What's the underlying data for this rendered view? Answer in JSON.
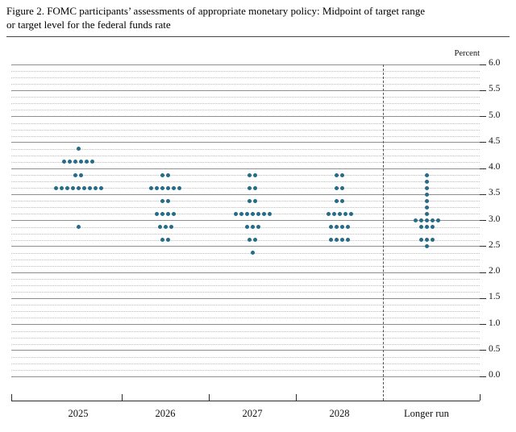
{
  "figure": {
    "title_line1": "Figure 2. FOMC participants’ assessments of appropriate monetary policy: Midpoint of target range",
    "title_line2": "or target level for the federal funds rate"
  },
  "chart_data": {
    "type": "scatter",
    "title": "FOMC participants’ assessments of appropriate monetary policy: Midpoint of target range or target level for the federal funds rate",
    "ylabel": "Percent",
    "xlabel": "",
    "ylim": [
      0.0,
      6.0
    ],
    "ytick_step": 0.5,
    "grid_minor_step": 0.125,
    "grid": "major solid, minor dotted",
    "legend_position": "none",
    "dot_color": "#256c8b",
    "ytick_labels": [
      "6.0",
      "5.5",
      "5.0",
      "4.5",
      "4.0",
      "3.5",
      "3.0",
      "2.5",
      "2.0",
      "1.5",
      "1.0",
      "0.5",
      "0.0"
    ],
    "categories": [
      "2025",
      "2026",
      "2027",
      "2028",
      "Longer run"
    ],
    "series": [
      {
        "category": "2025",
        "dots": [
          {
            "rate": 4.375,
            "count": 1
          },
          {
            "rate": 4.125,
            "count": 6
          },
          {
            "rate": 3.875,
            "count": 2
          },
          {
            "rate": 3.625,
            "count": 9
          },
          {
            "rate": 2.875,
            "count": 1
          }
        ]
      },
      {
        "category": "2026",
        "dots": [
          {
            "rate": 3.875,
            "count": 2
          },
          {
            "rate": 3.625,
            "count": 6
          },
          {
            "rate": 3.375,
            "count": 2
          },
          {
            "rate": 3.125,
            "count": 4
          },
          {
            "rate": 2.875,
            "count": 3
          },
          {
            "rate": 2.625,
            "count": 2
          }
        ]
      },
      {
        "category": "2027",
        "dots": [
          {
            "rate": 3.875,
            "count": 2
          },
          {
            "rate": 3.625,
            "count": 2
          },
          {
            "rate": 3.375,
            "count": 2
          },
          {
            "rate": 3.125,
            "count": 7
          },
          {
            "rate": 2.875,
            "count": 3
          },
          {
            "rate": 2.625,
            "count": 2
          },
          {
            "rate": 2.375,
            "count": 1
          }
        ]
      },
      {
        "category": "2028",
        "dots": [
          {
            "rate": 3.875,
            "count": 2
          },
          {
            "rate": 3.625,
            "count": 2
          },
          {
            "rate": 3.375,
            "count": 2
          },
          {
            "rate": 3.125,
            "count": 5
          },
          {
            "rate": 2.875,
            "count": 4
          },
          {
            "rate": 2.625,
            "count": 4
          }
        ]
      },
      {
        "category": "Longer run",
        "dots": [
          {
            "rate": 3.875,
            "count": 1
          },
          {
            "rate": 3.75,
            "count": 1
          },
          {
            "rate": 3.625,
            "count": 1
          },
          {
            "rate": 3.5,
            "count": 1
          },
          {
            "rate": 3.375,
            "count": 1
          },
          {
            "rate": 3.25,
            "count": 1
          },
          {
            "rate": 3.125,
            "count": 1
          },
          {
            "rate": 3.0,
            "count": 5
          },
          {
            "rate": 2.875,
            "count": 3
          },
          {
            "rate": 2.625,
            "count": 3
          },
          {
            "rate": 2.5,
            "count": 1
          }
        ]
      }
    ]
  }
}
